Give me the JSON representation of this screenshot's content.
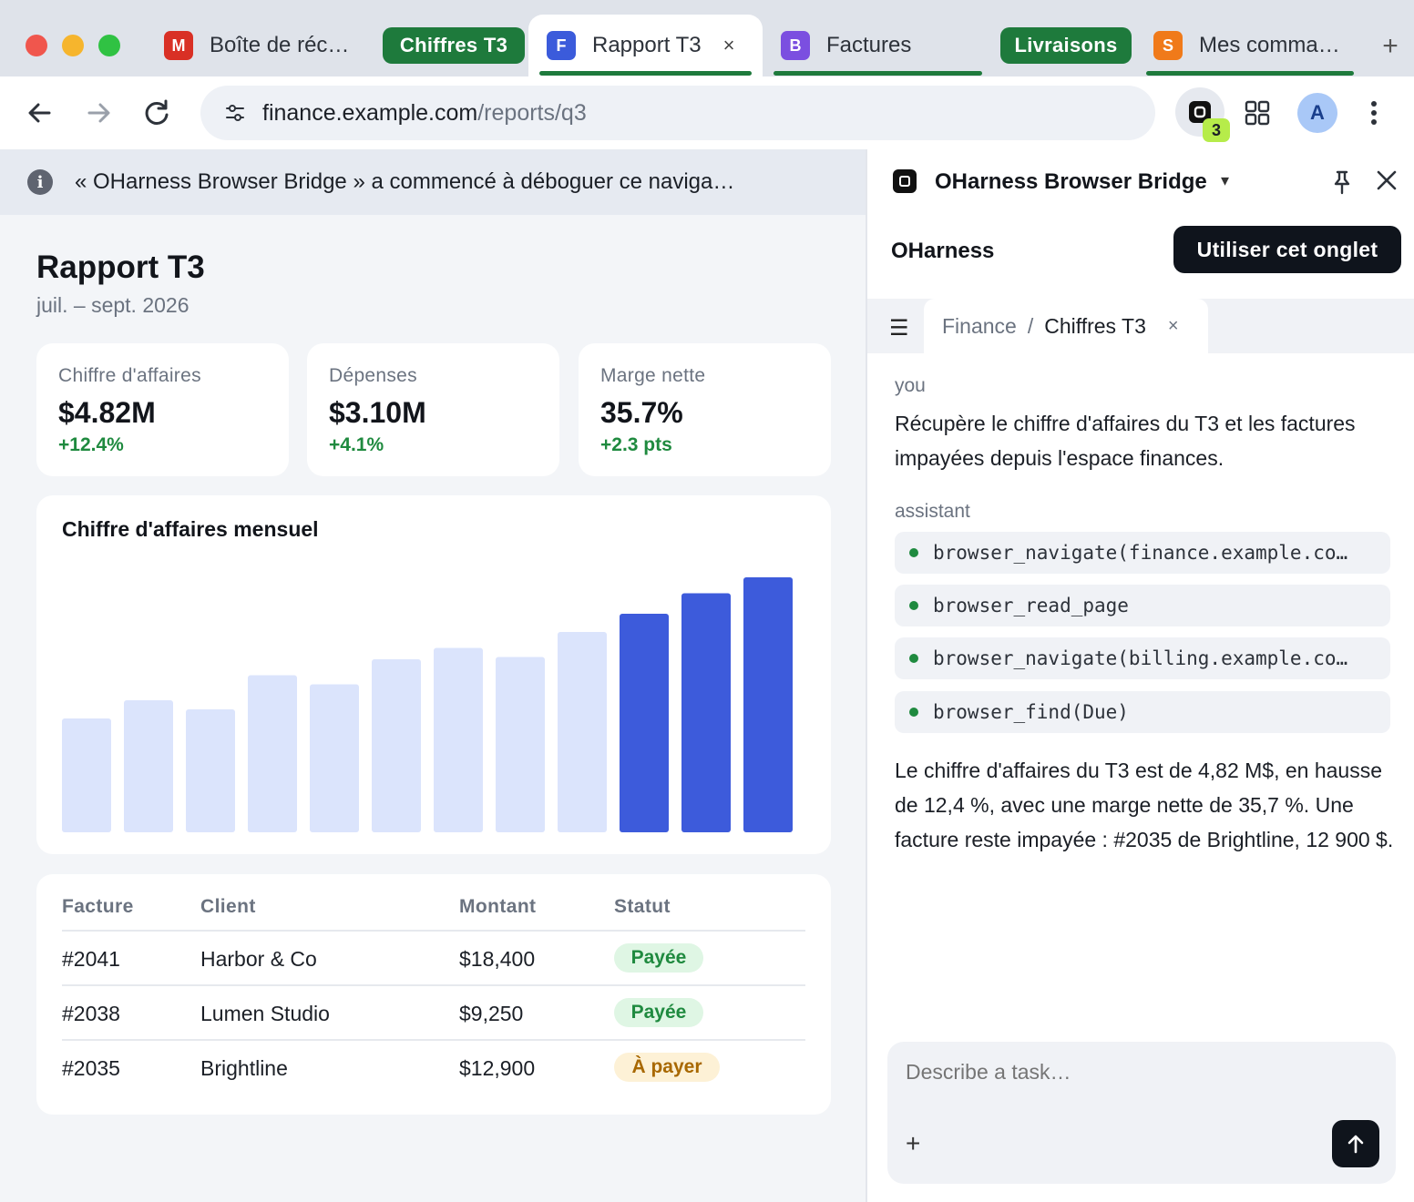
{
  "window": {
    "tabs": [
      {
        "label": "Boîte de réc…",
        "favicon_letter": "M",
        "favicon_color": "#d93025"
      },
      {
        "label": "Rapport T3",
        "favicon_letter": "F",
        "favicon_color": "#3b5bdb",
        "active": true,
        "close": "×"
      },
      {
        "label": "Factures",
        "favicon_letter": "B",
        "favicon_color": "#7b4fe0"
      },
      {
        "label": "Mes comma…",
        "favicon_letter": "S",
        "favicon_color": "#f07a1a"
      }
    ],
    "tab_groups": [
      {
        "label": "Chiffres T3",
        "color": "#1e7a3c"
      },
      {
        "label": "Livraisons",
        "color": "#1e7a3c"
      }
    ],
    "new_tab": "+"
  },
  "toolbar": {
    "url_host": "finance.example.com",
    "url_path": "/reports/q3",
    "extension_badge": "3",
    "avatar_letter": "A"
  },
  "banner": {
    "info_glyph": "i",
    "text": "« OHarness Browser Bridge » a commencé à déboguer ce naviga…"
  },
  "report": {
    "title": "Rapport T3",
    "subtitle": "juil. – sept. 2026",
    "kpis": [
      {
        "label": "Chiffre d'affaires",
        "value": "$4.82M",
        "delta": "+12.4%"
      },
      {
        "label": "Dépenses",
        "value": "$3.10M",
        "delta": "+4.1%"
      },
      {
        "label": "Marge nette",
        "value": "35.7%",
        "delta": "+2.3 pts"
      }
    ],
    "table": {
      "headers": [
        "Facture",
        "Client",
        "Montant",
        "Statut"
      ],
      "rows": [
        {
          "invoice": "#2041",
          "client": "Harbor & Co",
          "amount": "$18,400",
          "status": "Payée",
          "status_type": "paid"
        },
        {
          "invoice": "#2038",
          "client": "Lumen Studio",
          "amount": "$9,250",
          "status": "Payée",
          "status_type": "paid"
        },
        {
          "invoice": "#2035",
          "client": "Brightline",
          "amount": "$12,900",
          "status": "À payer",
          "status_type": "due"
        }
      ]
    }
  },
  "chart_data": {
    "type": "bar",
    "title": "Chiffre d'affaires mensuel",
    "values": [
      0.5,
      0.58,
      0.54,
      0.69,
      0.65,
      0.76,
      0.81,
      0.77,
      0.88,
      0.96,
      1.05,
      1.12
    ],
    "highlight_last": 3,
    "colors": {
      "base": "#dbe4fc",
      "highlight": "#3d5bdb"
    },
    "ylim": [
      0,
      1.2
    ]
  },
  "panel": {
    "name": "OHarness Browser Bridge",
    "dropdown_glyph": "▾",
    "brand": "OHarness",
    "use_tab_label": "Utiliser cet onglet",
    "subtab": {
      "section": "Finance",
      "separator": "/",
      "page": "Chiffres T3",
      "close": "×"
    },
    "user_role": "you",
    "user_message": "Récupère le chiffre d'affaires du T3 et les factures impayées depuis l'espace finances.",
    "assistant_role": "assistant",
    "tool_calls": [
      "browser_navigate(finance.example.co…",
      "browser_read_page",
      "browser_navigate(billing.example.co…",
      "browser_find(Due)"
    ],
    "assistant_message": "Le chiffre d'affaires du T3 est de 4,82 M$, en hausse de 12,4 %, avec une marge nette de 35,7 %. Une facture reste impayée : #2035 de Brightline, 12 900 $.",
    "composer_placeholder": "Describe a task…",
    "composer_plus": "+"
  }
}
